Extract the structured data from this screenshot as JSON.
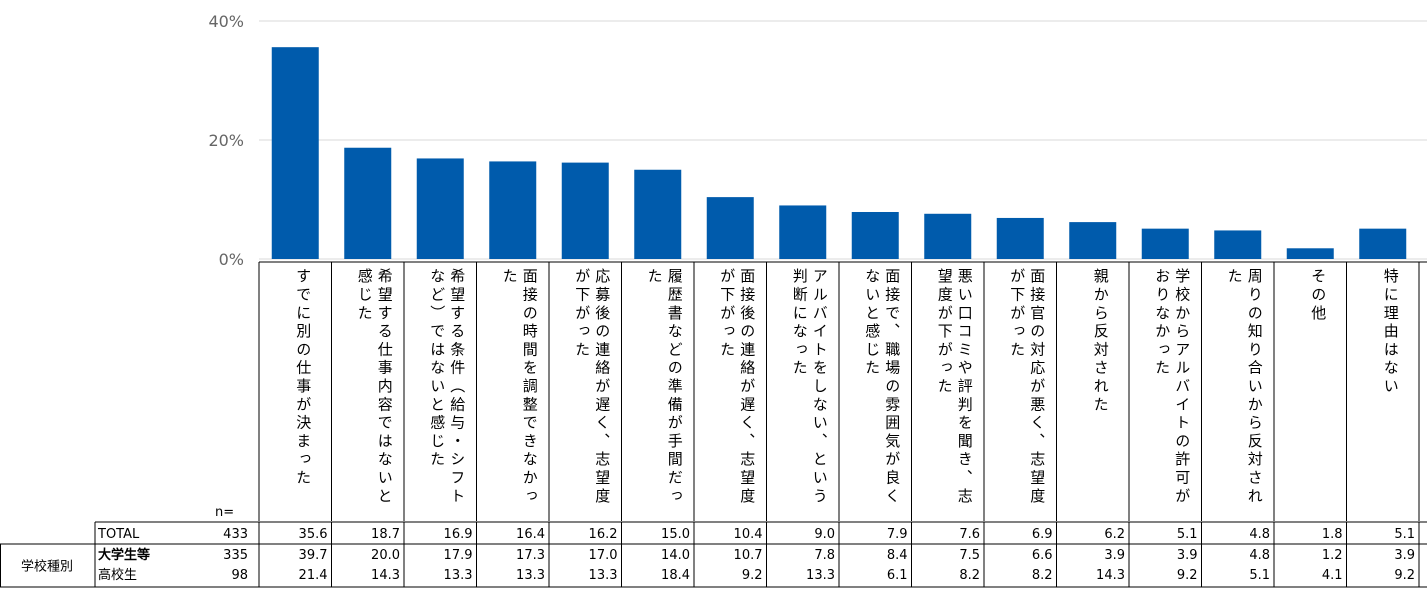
{
  "chart_data": {
    "type": "bar",
    "yticks": [
      "40%",
      "20%",
      "0%"
    ],
    "ylim": [
      0,
      40
    ],
    "bar_color": "#005bac",
    "categories": [
      "すでに別の仕事が決まった",
      "希望する仕事内容ではないと感じた",
      "希望する条件（給与・シフトなど）ではないと感じた",
      "面接の時間を調整できなかった",
      "応募後の連絡が遅く、志望度が下がった",
      "履歴書などの準備が手間だった",
      "面接後の連絡が遅く、志望度が下がった",
      "アルバイトをしない、という判断になった",
      "面接で、職場の雰囲気が良くないと感じた",
      "悪い口コミや評判を聞き、志望度が下がった",
      "面接官の対応が悪く、志望度が下がった",
      "親から反対された",
      "学校からアルバイトの許可がおりなかった",
      "周りの知り合いから反対された",
      "その他",
      "特に理由はない"
    ],
    "values": [
      35.6,
      18.7,
      16.9,
      16.4,
      16.2,
      15.0,
      10.4,
      9.0,
      7.9,
      7.6,
      6.9,
      6.2,
      5.1,
      4.8,
      1.8,
      5.1
    ]
  },
  "table": {
    "n_label": "n=",
    "group_label": "学校種別",
    "rows": [
      {
        "label": "TOTAL",
        "n": "433",
        "values": [
          "35.6",
          "18.7",
          "16.9",
          "16.4",
          "16.2",
          "15.0",
          "10.4",
          "9.0",
          "7.9",
          "7.6",
          "6.9",
          "6.2",
          "5.1",
          "4.8",
          "1.8",
          "5.1"
        ]
      },
      {
        "label": "大学生等",
        "n": "335",
        "values": [
          "39.7",
          "20.0",
          "17.9",
          "17.3",
          "17.0",
          "14.0",
          "10.7",
          "7.8",
          "8.4",
          "7.5",
          "6.6",
          "3.9",
          "3.9",
          "4.8",
          "1.2",
          "3.9"
        ]
      },
      {
        "label": "高校生",
        "n": "98",
        "values": [
          "21.4",
          "14.3",
          "13.3",
          "13.3",
          "13.3",
          "18.4",
          "9.2",
          "13.3",
          "6.1",
          "8.2",
          "8.2",
          "14.3",
          "9.2",
          "5.1",
          "4.1",
          "9.2"
        ]
      }
    ]
  }
}
